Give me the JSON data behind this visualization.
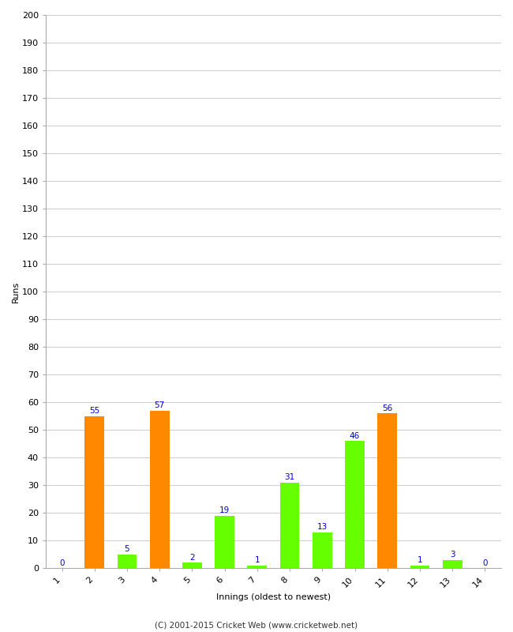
{
  "innings": [
    1,
    2,
    3,
    4,
    5,
    6,
    7,
    8,
    9,
    10,
    11,
    12,
    13,
    14
  ],
  "runs": [
    0,
    55,
    5,
    57,
    2,
    19,
    1,
    31,
    13,
    46,
    56,
    1,
    3,
    0
  ],
  "colors": [
    "#ff8800",
    "#ff8800",
    "#66ff00",
    "#ff8800",
    "#66ff00",
    "#66ff00",
    "#66ff00",
    "#66ff00",
    "#66ff00",
    "#66ff00",
    "#ff8800",
    "#66ff00",
    "#66ff00",
    "#66ff00"
  ],
  "xlabel": "Innings (oldest to newest)",
  "ylabel": "Runs",
  "ylim": [
    0,
    200
  ],
  "yticks": [
    0,
    10,
    20,
    30,
    40,
    50,
    60,
    70,
    80,
    90,
    100,
    110,
    120,
    130,
    140,
    150,
    160,
    170,
    180,
    190,
    200
  ],
  "label_color": "#0000cc",
  "label_fontsize": 7.5,
  "footer": "(C) 2001-2015 Cricket Web (www.cricketweb.net)",
  "background_color": "#ffffff",
  "grid_color": "#cccccc",
  "bar_width": 0.6,
  "tick_fontsize": 8,
  "axis_label_fontsize": 8
}
